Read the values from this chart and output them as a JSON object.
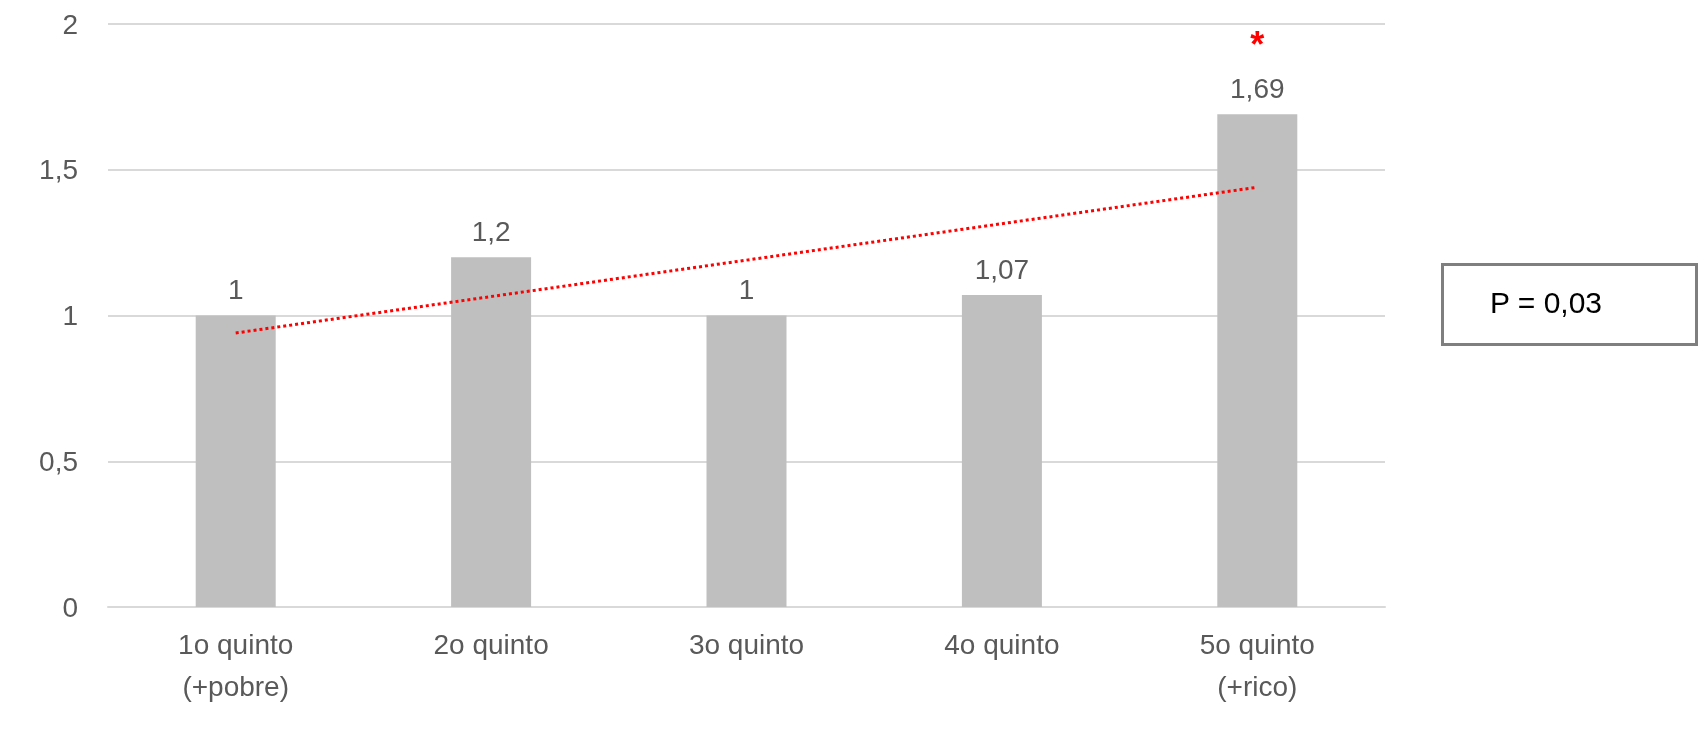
{
  "chart_data": {
    "type": "bar",
    "categories": [
      "1o quinto\n(+pobre)",
      "2o quinto",
      "3o quinto",
      "4o quinto",
      "5o quinto\n(+rico)"
    ],
    "series": [
      {
        "color": "#bfbfbf",
        "values": [
          1,
          1.2,
          1,
          1.07,
          1.69
        ],
        "value_labels": [
          "1",
          "1,2",
          "1",
          "1,07",
          "1,69"
        ]
      },
      {
        "type": "line",
        "color": "#ff0000",
        "line_style": "dotted",
        "marker": "none",
        "x": [
          "1o quinto\n(+pobre)",
          "5o quinto\n(+rico)"
        ],
        "values": [
          0.94,
          1.44
        ]
      }
    ],
    "ylim": [
      0,
      2
    ],
    "yticks": [
      0,
      {
        "value": 0.5,
        "label": "0,5"
      },
      1,
      {
        "value": 1.5,
        "label": "1,5"
      },
      2
    ],
    "grid": "y",
    "annotations": [
      {
        "text": "*",
        "x": "5o quinto\n(+rico)",
        "y": 1.69
      },
      "P = 0,03"
    ]
  }
}
